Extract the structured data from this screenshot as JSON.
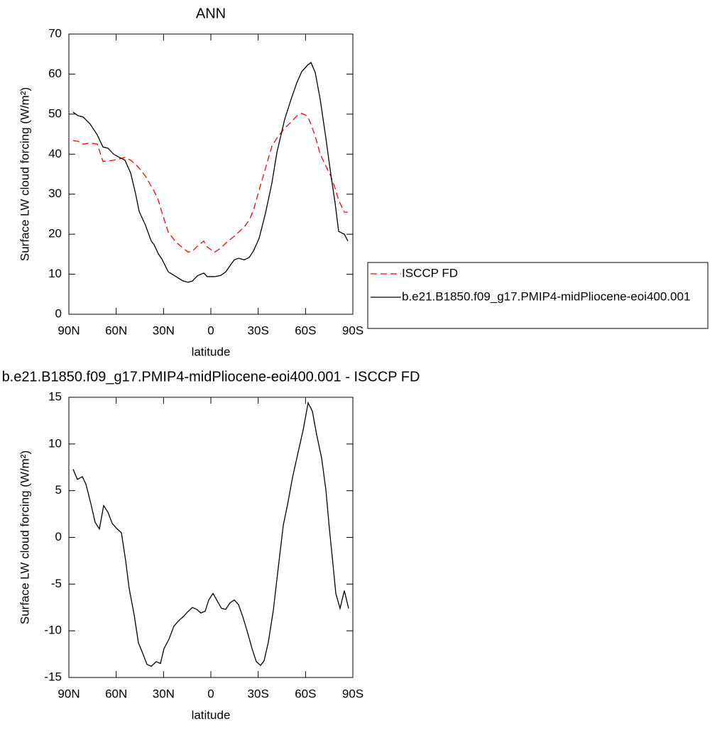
{
  "chart_data": [
    {
      "type": "line",
      "title": "ANN",
      "x_label": "latitude",
      "y_label": "Surface LW cloud forcing (W/m²)",
      "xlim": [
        90,
        -90
      ],
      "ylim": [
        0,
        70
      ],
      "xticks": [
        {
          "value": 90,
          "label": "90N"
        },
        {
          "value": 60,
          "label": "60N"
        },
        {
          "value": 30,
          "label": "30N"
        },
        0,
        {
          "value": -30,
          "label": "30S"
        },
        {
          "value": -60,
          "label": "60S"
        },
        {
          "value": -90,
          "label": "90S"
        }
      ],
      "yticks": [
        0,
        10,
        20,
        30,
        40,
        50,
        60,
        70
      ],
      "legend": "right",
      "x": [
        87.3,
        84.15,
        81.0,
        76.5,
        72.0,
        68.4,
        65.25,
        61.65,
        58.05,
        54.45,
        50.85,
        47.7,
        45.45,
        41.4,
        37.8,
        36.0,
        33.3,
        31.05,
        27.0,
        22.05,
        17.55,
        14.4,
        11.7,
        8.55,
        4.5,
        2.25,
        -2.25,
        -6.3,
        -9.45,
        -12.6,
        -14.85,
        -17.55,
        -21.15,
        -24.3,
        -27,
        -30.6,
        -34.65,
        -38.7,
        -41.85,
        -46.8,
        -50.85,
        -54.45,
        -57.6,
        -61.2,
        -63.45,
        -66.15,
        -69.3,
        -72.9,
        -76.05,
        -78.75,
        -81,
        -84.6,
        -86.85
      ],
      "series": [
        {
          "name": "ISCCP FD",
          "color": "#ff0000",
          "dashed": true,
          "values": [
            43.4,
            43.2,
            42.5,
            42.8,
            42.5,
            38.2,
            38.3,
            38.5,
            38.8,
            39.2,
            38.5,
            37.5,
            36.5,
            34.5,
            32,
            30.8,
            28.5,
            25.5,
            20.5,
            18,
            16.5,
            15.5,
            15.8,
            17,
            18.3,
            16.8,
            15.5,
            16.5,
            17.8,
            18.8,
            19.5,
            20.5,
            21.8,
            23.5,
            26,
            31,
            36.5,
            42,
            44,
            46.5,
            48,
            49.5,
            50.2,
            49.5,
            47.5,
            44.5,
            40,
            37,
            34.5,
            31.5,
            28.5,
            25.5,
            25.5
          ]
        },
        {
          "name": "b.e21.B1850.f09_g17.PMIP4-midPliocene-eoi400.001",
          "color": "#000000",
          "dashed": false,
          "values": [
            50.5,
            49.6,
            49.3,
            47.5,
            44.8,
            41.8,
            41.5,
            40,
            39.2,
            38.5,
            35.3,
            30.1,
            25.7,
            22.2,
            18.3,
            17.4,
            15.1,
            13.8,
            10.6,
            9.4,
            8.3,
            8.0,
            8.3,
            9.6,
            10.3,
            9.4,
            9.4,
            9.7,
            10.6,
            12.4,
            13.6,
            14.0,
            13.6,
            14.2,
            15.8,
            19.0,
            25.3,
            32.8,
            40.4,
            48.7,
            53.7,
            57.8,
            60.6,
            62.2,
            62.9,
            60.4,
            53.7,
            44.0,
            34.9,
            27.8,
            20.7,
            20.0,
            18.3
          ]
        }
      ]
    },
    {
      "type": "line",
      "title": "b.e21.B1850.f09_g17.PMIP4-midPliocene-eoi400.001 - ISCCP FD",
      "x_label": "latitude",
      "y_label": "Surface LW cloud forcing (W/m²)",
      "xlim": [
        90,
        -90
      ],
      "ylim": [
        -15,
        15
      ],
      "xticks": [
        {
          "value": 90,
          "label": "90N"
        },
        {
          "value": 60,
          "label": "60N"
        },
        {
          "value": 30,
          "label": "30N"
        },
        0,
        {
          "value": -30,
          "label": "30S"
        },
        {
          "value": -60,
          "label": "60S"
        },
        {
          "value": -90,
          "label": "90S"
        }
      ],
      "yticks": [
        -15,
        -10,
        -5,
        0,
        5,
        10,
        15
      ],
      "x": [
        87.3,
        84.6,
        81.45,
        79.2,
        76.05,
        73.35,
        70.65,
        67.95,
        65.25,
        62.55,
        59.4,
        56.7,
        54.0,
        51.75,
        48.6,
        45.9,
        43.2,
        40.5,
        37.8,
        34.65,
        31.95,
        29.7,
        26.55,
        23.4,
        20.25,
        17.55,
        14.85,
        11.7,
        9.0,
        6.3,
        3.6,
        1.35,
        -1.35,
        -4.05,
        -6.75,
        -9.45,
        -12.15,
        -14.85,
        -17.55,
        -20.25,
        -22.95,
        -26.1,
        -28.8,
        -31.5,
        -33.75,
        -36.45,
        -39.6,
        -42.75,
        -45.9,
        -48.6,
        -51.75,
        -54.9,
        -58.5,
        -61.65,
        -64.35,
        -67.05,
        -70.2,
        -72.9,
        -75.15,
        -76.95,
        -79.2,
        -81.9,
        -84.6,
        -87.3
      ],
      "series": [
        {
          "color": "#000000",
          "dashed": false,
          "values": [
            7.3,
            6.2,
            6.5,
            5.7,
            3.6,
            1.6,
            0.9,
            3.4,
            2.7,
            1.5,
            0.9,
            0.5,
            -2.5,
            -5.5,
            -8.3,
            -11.3,
            -12.4,
            -13.6,
            -13.8,
            -13.3,
            -13.5,
            -11.9,
            -10.9,
            -9.5,
            -8.9,
            -8.5,
            -8.0,
            -7.5,
            -7.7,
            -8.1,
            -7.9,
            -6.7,
            -6.0,
            -6.8,
            -7.6,
            -7.7,
            -7.0,
            -6.7,
            -7.2,
            -8.5,
            -10.0,
            -11.9,
            -13.3,
            -13.7,
            -13.2,
            -11.2,
            -7.8,
            -3.2,
            1.3,
            3.5,
            6.4,
            8.8,
            11.5,
            14.4,
            13.5,
            11.0,
            8.5,
            5.1,
            0.9,
            -2.1,
            -6.0,
            -7.6,
            -5.7,
            -7.6
          ]
        }
      ]
    }
  ]
}
